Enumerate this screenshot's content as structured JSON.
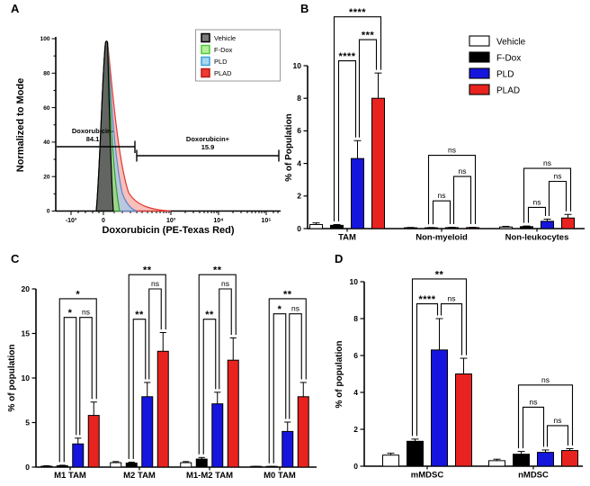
{
  "background": "#ffffff",
  "chart_data": [
    {
      "panel": "A",
      "type": "area",
      "subtype": "flow-cytometry-histogram",
      "xlabel": "Doxorubicin (PE-Texas Red)",
      "ylabel": "Normalized to Mode",
      "xticks": [
        "-10³",
        "0",
        "10³",
        "10⁴",
        "10⁵"
      ],
      "yticks": [
        0,
        20,
        40,
        60,
        80,
        100
      ],
      "ylim": [
        0,
        100
      ],
      "peak_mode_x": "0",
      "series": [
        {
          "name": "Vehicle",
          "curve_fill": "#5f5f5f",
          "curve_stroke": "#000000",
          "legend_fill": "#7a7a7a",
          "legend_stroke": "#000000"
        },
        {
          "name": "F-Dox",
          "curve_fill": "#98d77e",
          "curve_stroke": "#2f9e2f",
          "legend_fill": "#b4ef9c",
          "legend_stroke": "#4ecb38"
        },
        {
          "name": "PLD",
          "curve_fill": "#aac9e8",
          "curve_stroke": "#5c86c9",
          "legend_fill": "#a4d8f2",
          "legend_stroke": "#3d9fd8"
        },
        {
          "name": "PLAD",
          "curve_fill": "#f6a9a4",
          "curve_stroke": "#e0352c",
          "legend_fill": "#ee3b33",
          "legend_stroke": "#bb1612"
        }
      ],
      "gates": [
        {
          "name": "Doxorubicin-",
          "percent": "84.1"
        },
        {
          "name": "Doxorubicin+",
          "percent": "15.9"
        }
      ]
    },
    {
      "panel": "B",
      "type": "bar",
      "ylabel": "% of Population",
      "ylim": [
        0,
        10
      ],
      "yticks": [
        0,
        2,
        4,
        6,
        8,
        10
      ],
      "categories": [
        "TAM",
        "Non-myeloid",
        "Non-leukocytes"
      ],
      "series": [
        {
          "name": "Vehicle",
          "color": "#ffffff",
          "values": [
            0.25,
            0.05,
            0.1
          ],
          "errors": [
            0.1,
            0.02,
            0.04
          ]
        },
        {
          "name": "F-Dox",
          "color": "#000000",
          "values": [
            0.2,
            0.05,
            0.12
          ],
          "errors": [
            0.05,
            0.02,
            0.04
          ]
        },
        {
          "name": "PLD",
          "color": "#1515dd",
          "values": [
            4.3,
            0.06,
            0.45
          ],
          "errors": [
            1.1,
            0.02,
            0.13
          ]
        },
        {
          "name": "PLAD",
          "color": "#e8231f",
          "values": [
            8.0,
            0.06,
            0.65
          ],
          "errors": [
            1.55,
            0.02,
            0.22
          ]
        }
      ],
      "legend": true,
      "legend_position": "top-right",
      "significance": [
        {
          "cat": 0,
          "from": 1,
          "to": 2,
          "label": "****",
          "y": 10.3
        },
        {
          "cat": 0,
          "from": 2,
          "to": 3,
          "label": "***",
          "y": 11.6
        },
        {
          "cat": 0,
          "from": 1,
          "to": 3,
          "label": "****",
          "y": 13.0,
          "outer": true
        },
        {
          "cat": 1,
          "from": 1,
          "to": 2,
          "label": "ns",
          "y": 1.7
        },
        {
          "cat": 1,
          "from": 2,
          "to": 3,
          "label": "ns",
          "y": 3.2
        },
        {
          "cat": 1,
          "from": 1,
          "to": 3,
          "label": "ns",
          "y": 4.5,
          "outer": true
        },
        {
          "cat": 2,
          "from": 1,
          "to": 2,
          "label": "ns",
          "y": 1.3
        },
        {
          "cat": 2,
          "from": 2,
          "to": 3,
          "label": "ns",
          "y": 2.9
        },
        {
          "cat": 2,
          "from": 1,
          "to": 3,
          "label": "ns",
          "y": 3.7,
          "outer": true
        }
      ]
    },
    {
      "panel": "C",
      "type": "bar",
      "ylabel": "% of population",
      "ylim": [
        0,
        20
      ],
      "yticks": [
        0,
        5,
        10,
        15,
        20
      ],
      "categories": [
        "M1 TAM",
        "M2 TAM",
        "M1-M2 TAM",
        "M0 TAM"
      ],
      "series": [
        {
          "name": "Vehicle",
          "color": "#ffffff",
          "values": [
            0.1,
            0.5,
            0.5,
            0.05
          ],
          "errors": [
            0.05,
            0.12,
            0.12,
            0.03
          ]
        },
        {
          "name": "F-Dox",
          "color": "#000000",
          "values": [
            0.15,
            0.45,
            0.9,
            0.05
          ],
          "errors": [
            0.06,
            0.1,
            0.18,
            0.03
          ]
        },
        {
          "name": "PLD",
          "color": "#1515dd",
          "values": [
            2.6,
            7.9,
            7.1,
            4.0
          ],
          "errors": [
            0.65,
            1.6,
            1.3,
            1.05
          ]
        },
        {
          "name": "PLAD",
          "color": "#e8231f",
          "values": [
            5.8,
            13.0,
            12.0,
            7.9
          ],
          "errors": [
            1.5,
            2.1,
            2.5,
            1.6
          ]
        }
      ],
      "legend": false,
      "significance": [
        {
          "cat": 0,
          "from": 1,
          "to": 2,
          "label": "*",
          "y": 16.8
        },
        {
          "cat": 0,
          "from": 2,
          "to": 3,
          "label": "ns",
          "y": 16.8
        },
        {
          "cat": 0,
          "from": 1,
          "to": 3,
          "label": "*",
          "y": 18.9,
          "outer": true
        },
        {
          "cat": 1,
          "from": 1,
          "to": 2,
          "label": "**",
          "y": 16.6
        },
        {
          "cat": 1,
          "from": 2,
          "to": 3,
          "label": "ns",
          "y": 20.0
        },
        {
          "cat": 1,
          "from": 1,
          "to": 3,
          "label": "**",
          "y": 21.6,
          "outer": true
        },
        {
          "cat": 2,
          "from": 1,
          "to": 2,
          "label": "**",
          "y": 16.6
        },
        {
          "cat": 2,
          "from": 2,
          "to": 3,
          "label": "ns",
          "y": 20.0
        },
        {
          "cat": 2,
          "from": 1,
          "to": 3,
          "label": "**",
          "y": 21.6,
          "outer": true
        },
        {
          "cat": 3,
          "from": 1,
          "to": 2,
          "label": "*",
          "y": 17.2
        },
        {
          "cat": 3,
          "from": 2,
          "to": 3,
          "label": "ns",
          "y": 17.2
        },
        {
          "cat": 3,
          "from": 1,
          "to": 3,
          "label": "**",
          "y": 18.9,
          "outer": true
        }
      ]
    },
    {
      "panel": "D",
      "type": "bar",
      "ylabel": "% of population",
      "ylim": [
        0,
        10
      ],
      "yticks": [
        0,
        2,
        4,
        6,
        8,
        10
      ],
      "categories": [
        "mMDSC",
        "nMDSC"
      ],
      "series": [
        {
          "name": "Vehicle",
          "color": "#ffffff",
          "values": [
            0.6,
            0.3
          ],
          "errors": [
            0.1,
            0.08
          ]
        },
        {
          "name": "F-Dox",
          "color": "#000000",
          "values": [
            1.35,
            0.65
          ],
          "errors": [
            0.12,
            0.15
          ]
        },
        {
          "name": "PLD",
          "color": "#1515dd",
          "values": [
            6.3,
            0.75
          ],
          "errors": [
            1.7,
            0.13
          ]
        },
        {
          "name": "PLAD",
          "color": "#e8231f",
          "values": [
            5.0,
            0.85
          ],
          "errors": [
            0.85,
            0.1
          ]
        }
      ],
      "legend": false,
      "significance": [
        {
          "cat": 0,
          "from": 1,
          "to": 2,
          "label": "****",
          "y": 8.8
        },
        {
          "cat": 0,
          "from": 2,
          "to": 3,
          "label": "ns",
          "y": 8.8
        },
        {
          "cat": 0,
          "from": 1,
          "to": 3,
          "label": "**",
          "y": 10.15,
          "outer": true
        },
        {
          "cat": 1,
          "from": 1,
          "to": 2,
          "label": "ns",
          "y": 3.2
        },
        {
          "cat": 1,
          "from": 2,
          "to": 3,
          "label": "ns",
          "y": 2.2
        },
        {
          "cat": 1,
          "from": 1,
          "to": 3,
          "label": "ns",
          "y": 4.4,
          "outer": true
        }
      ]
    }
  ]
}
